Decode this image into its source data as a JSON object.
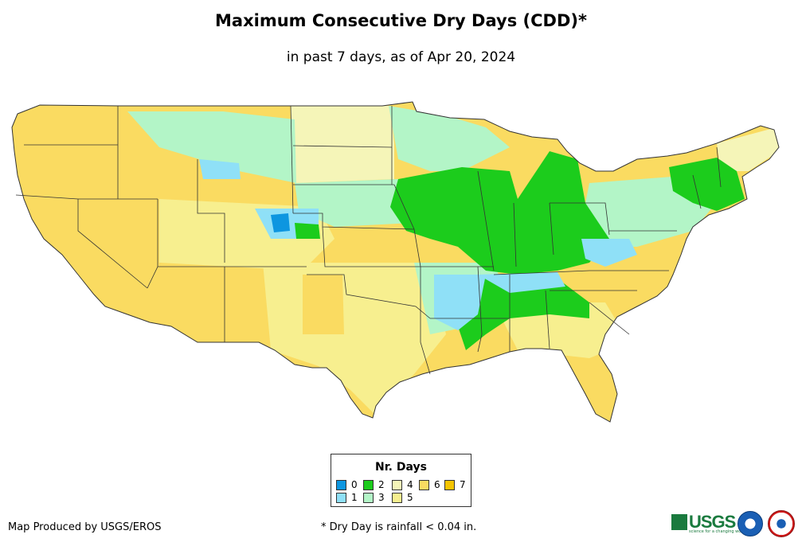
{
  "title": "Maximum Consecutive Dry Days (CDD)*",
  "subtitle": "in past 7 days, as of Apr 20, 2024",
  "legend": {
    "title": "Nr. Days",
    "items": [
      {
        "label": "0",
        "color": "#0d96e0"
      },
      {
        "label": "1",
        "color": "#8fe0f7"
      },
      {
        "label": "2",
        "color": "#1ccc1c"
      },
      {
        "label": "3",
        "color": "#b3f5c7"
      },
      {
        "label": "4",
        "color": "#f5f5b8"
      },
      {
        "label": "5",
        "color": "#f7ef8f"
      },
      {
        "label": "6",
        "color": "#fadb61"
      },
      {
        "label": "7",
        "color": "#f5c400"
      }
    ]
  },
  "footer": {
    "producer": "Map Produced by USGS/EROS",
    "note": "* Dry Day is rainfall < 0.04 in."
  },
  "logos": {
    "usgs": "USGS",
    "usgs_tagline": "science for a changing world",
    "noaa": "noaa-logo",
    "nws": "nws-logo"
  }
}
